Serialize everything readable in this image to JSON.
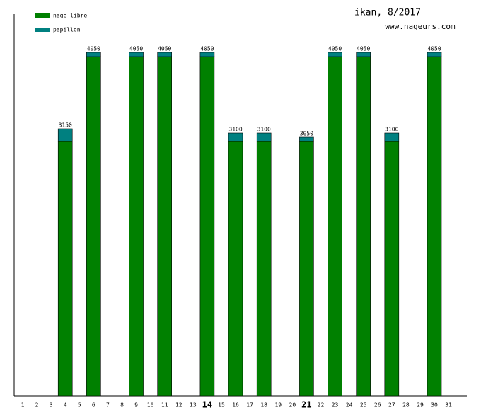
{
  "chart_data": {
    "type": "stacked_bar",
    "title": "ikan, 8/2017",
    "subtitle": "www.nageurs.com",
    "categories": [
      "1",
      "2",
      "3",
      "4",
      "5",
      "6",
      "7",
      "8",
      "9",
      "10",
      "11",
      "12",
      "13",
      "14",
      "15",
      "16",
      "17",
      "18",
      "19",
      "20",
      "21",
      "22",
      "23",
      "24",
      "25",
      "26",
      "27",
      "28",
      "29",
      "30",
      "31"
    ],
    "bold_categories": [
      "14",
      "21"
    ],
    "series": [
      {
        "name": "nage libre",
        "color": "#008000",
        "values": [
          null,
          null,
          null,
          3000,
          null,
          4000,
          null,
          null,
          4000,
          null,
          4000,
          null,
          null,
          4000,
          null,
          3000,
          null,
          3000,
          null,
          null,
          3000,
          null,
          4000,
          null,
          4000,
          null,
          3000,
          null,
          null,
          4000,
          null
        ]
      },
      {
        "name": "papillon",
        "color": "#008080",
        "values": [
          null,
          null,
          null,
          150,
          null,
          50,
          null,
          null,
          50,
          null,
          50,
          null,
          null,
          50,
          null,
          100,
          null,
          100,
          null,
          null,
          50,
          null,
          50,
          null,
          50,
          null,
          100,
          null,
          null,
          50,
          null
        ]
      }
    ],
    "total_labels": [
      null,
      null,
      null,
      "3150",
      null,
      "4050",
      null,
      null,
      "4050",
      null,
      "4050",
      null,
      null,
      "4050",
      null,
      "3100",
      null,
      "3100",
      null,
      null,
      "3050",
      null,
      "4050",
      null,
      "4050",
      null,
      "3100",
      null,
      null,
      "4050",
      null
    ],
    "ylim": [
      0,
      4500
    ]
  }
}
